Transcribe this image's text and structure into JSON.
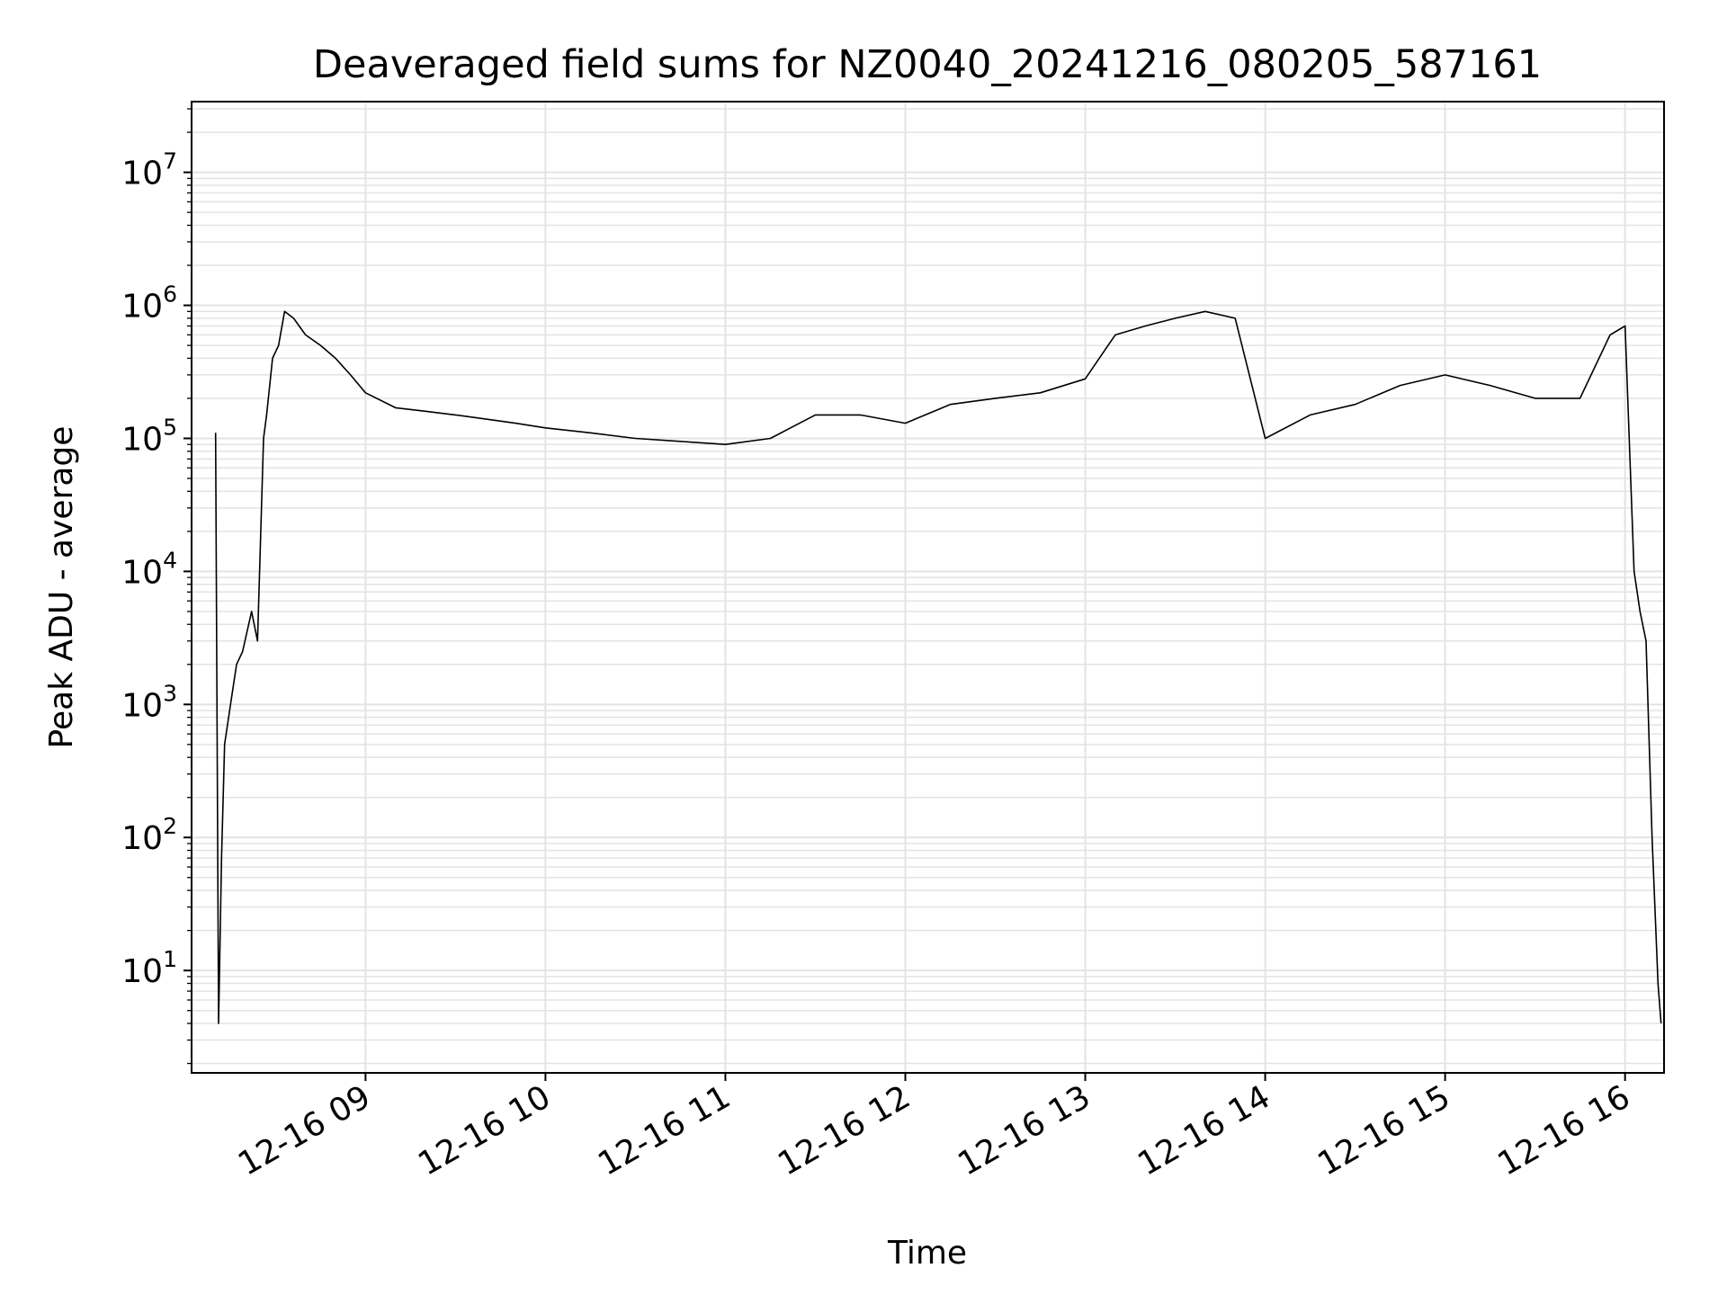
{
  "chart_data": {
    "type": "line",
    "title": "Deaveraged field sums for NZ0040_20241216_080205_587161",
    "xlabel": "Time",
    "ylabel": "Peak ADU - average",
    "yscale": "log",
    "ylim": [
      1.7,
      34000000
    ],
    "xlim": [
      "2024-12-16 08:02",
      "2024-12-16 16:13"
    ],
    "grid": true,
    "line_color": "#000000",
    "grid_color": "#e3e3e3",
    "x_ticks": [
      {
        "x": "2024-12-16 09:00",
        "label": "12-16 09"
      },
      {
        "x": "2024-12-16 10:00",
        "label": "12-16 10"
      },
      {
        "x": "2024-12-16 11:00",
        "label": "12-16 11"
      },
      {
        "x": "2024-12-16 12:00",
        "label": "12-16 12"
      },
      {
        "x": "2024-12-16 13:00",
        "label": "12-16 13"
      },
      {
        "x": "2024-12-16 14:00",
        "label": "12-16 14"
      },
      {
        "x": "2024-12-16 15:00",
        "label": "12-16 15"
      },
      {
        "x": "2024-12-16 16:00",
        "label": "12-16 16"
      }
    ],
    "y_ticks": [
      {
        "value": 10,
        "base": "10",
        "exp": "1"
      },
      {
        "value": 100,
        "base": "10",
        "exp": "2"
      },
      {
        "value": 1000,
        "base": "10",
        "exp": "3"
      },
      {
        "value": 10000,
        "base": "10",
        "exp": "4"
      },
      {
        "value": 100000,
        "base": "10",
        "exp": "5"
      },
      {
        "value": 1000000,
        "base": "10",
        "exp": "6"
      },
      {
        "value": 10000000,
        "base": "10",
        "exp": "7"
      }
    ],
    "series": [
      {
        "x": [
          "2024-12-16 08:10",
          "2024-12-16 08:11",
          "2024-12-16 08:12",
          "2024-12-16 08:13",
          "2024-12-16 08:15",
          "2024-12-16 08:17",
          "2024-12-16 08:19",
          "2024-12-16 08:22",
          "2024-12-16 08:24",
          "2024-12-16 08:26",
          "2024-12-16 08:27",
          "2024-12-16 08:29",
          "2024-12-16 08:31",
          "2024-12-16 08:33",
          "2024-12-16 08:36",
          "2024-12-16 08:40",
          "2024-12-16 08:45",
          "2024-12-16 08:50",
          "2024-12-16 08:55",
          "2024-12-16 09:00",
          "2024-12-16 09:10",
          "2024-12-16 09:20",
          "2024-12-16 09:30",
          "2024-12-16 09:40",
          "2024-12-16 09:50",
          "2024-12-16 10:00",
          "2024-12-16 10:15",
          "2024-12-16 10:30",
          "2024-12-16 10:45",
          "2024-12-16 11:00",
          "2024-12-16 11:15",
          "2024-12-16 11:30",
          "2024-12-16 11:45",
          "2024-12-16 12:00",
          "2024-12-16 12:15",
          "2024-12-16 12:30",
          "2024-12-16 12:45",
          "2024-12-16 13:00",
          "2024-12-16 13:10",
          "2024-12-16 13:20",
          "2024-12-16 13:30",
          "2024-12-16 13:40",
          "2024-12-16 13:50",
          "2024-12-16 14:00",
          "2024-12-16 14:15",
          "2024-12-16 14:30",
          "2024-12-16 14:45",
          "2024-12-16 15:00",
          "2024-12-16 15:15",
          "2024-12-16 15:30",
          "2024-12-16 15:45",
          "2024-12-16 15:55",
          "2024-12-16 16:00",
          "2024-12-16 16:03",
          "2024-12-16 16:05",
          "2024-12-16 16:07",
          "2024-12-16 16:09",
          "2024-12-16 16:11",
          "2024-12-16 16:12"
        ],
        "y": [
          110000,
          4,
          70,
          500,
          1000,
          2000,
          2500,
          5000,
          3000,
          100000,
          150000,
          400000,
          500000,
          900000,
          800000,
          600000,
          500000,
          400000,
          300000,
          220000,
          170000,
          160000,
          150000,
          140000,
          130000,
          120000,
          110000,
          100000,
          95000,
          90000,
          100000,
          150000,
          150000,
          130000,
          180000,
          200000,
          220000,
          280000,
          600000,
          700000,
          800000,
          900000,
          800000,
          100000,
          150000,
          180000,
          250000,
          300000,
          250000,
          200000,
          200000,
          600000,
          700000,
          10000,
          5000,
          3000,
          100,
          8,
          4
        ]
      }
    ]
  }
}
